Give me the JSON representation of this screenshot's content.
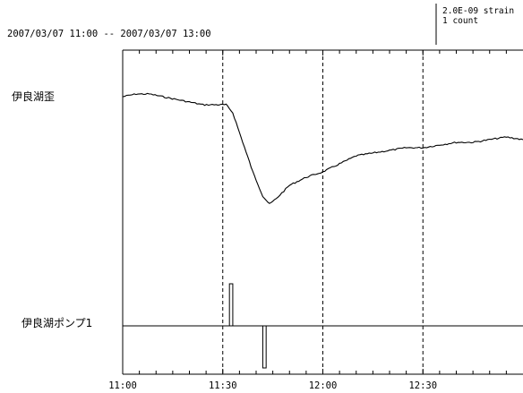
{
  "chart_data": {
    "type": "line",
    "title": "2007/03/07 11:00 -- 2007/03/07 13:00",
    "scale_legend": {
      "line1": "2.0E-09 strain",
      "line2": "1 count"
    },
    "x": {
      "unit": "minutes",
      "range": [
        "11:00",
        "13:00"
      ],
      "tick_labels": [
        "11:00",
        "11:30",
        "12:00",
        "12:30"
      ],
      "grid": "dashed at 11:30, 12:00, 12:30"
    },
    "series": [
      {
        "name": "伊良湖歪",
        "unit": "2.0E-09 strain",
        "points": [
          [
            "11:00",
            0
          ],
          [
            "11:04",
            1
          ],
          [
            "11:08",
            1
          ],
          [
            "11:12",
            0
          ],
          [
            "11:16",
            -1
          ],
          [
            "11:20",
            -2
          ],
          [
            "11:24",
            -3
          ],
          [
            "11:28",
            -3
          ],
          [
            "11:31",
            -3
          ],
          [
            "11:33",
            -6
          ],
          [
            "11:36",
            -17
          ],
          [
            "11:39",
            -28
          ],
          [
            "11:42",
            -37
          ],
          [
            "11:44",
            -40
          ],
          [
            "11:46",
            -38
          ],
          [
            "11:50",
            -33
          ],
          [
            "11:55",
            -30
          ],
          [
            "12:00",
            -28
          ],
          [
            "12:05",
            -25
          ],
          [
            "12:10",
            -22
          ],
          [
            "12:15",
            -21
          ],
          [
            "12:20",
            -20
          ],
          [
            "12:25",
            -19
          ],
          [
            "12:30",
            -19
          ],
          [
            "12:35",
            -18
          ],
          [
            "12:40",
            -17
          ],
          [
            "12:45",
            -17
          ],
          [
            "12:50",
            -16
          ],
          [
            "12:55",
            -15
          ],
          [
            "13:00",
            -16
          ]
        ]
      },
      {
        "name": "伊良湖ポンプ1",
        "unit": "1 count",
        "pulses": [
          {
            "start": "11:32",
            "end": "11:33",
            "direction": "up"
          },
          {
            "start": "11:42",
            "end": "11:43",
            "direction": "down"
          }
        ]
      }
    ]
  }
}
